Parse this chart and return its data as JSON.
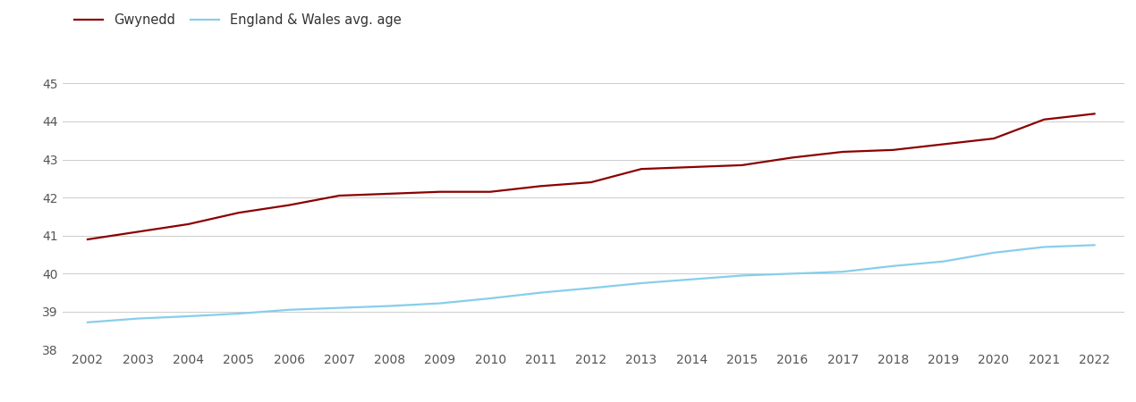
{
  "years": [
    2002,
    2003,
    2004,
    2005,
    2006,
    2007,
    2008,
    2009,
    2010,
    2011,
    2012,
    2013,
    2014,
    2015,
    2016,
    2017,
    2018,
    2019,
    2020,
    2021,
    2022
  ],
  "gwynedd": [
    40.9,
    41.1,
    41.3,
    41.6,
    41.8,
    42.05,
    42.1,
    42.15,
    42.15,
    42.3,
    42.4,
    42.75,
    42.8,
    42.85,
    43.05,
    43.2,
    43.25,
    43.4,
    43.55,
    44.05,
    44.2
  ],
  "england_wales": [
    38.72,
    38.82,
    38.88,
    38.95,
    39.05,
    39.1,
    39.15,
    39.22,
    39.35,
    39.5,
    39.62,
    39.75,
    39.85,
    39.95,
    40.0,
    40.05,
    40.2,
    40.32,
    40.55,
    40.7,
    40.75
  ],
  "gwynedd_color": "#8B0000",
  "england_wales_color": "#87CEEB",
  "gwynedd_label": "Gwynedd",
  "england_wales_label": "England & Wales avg. age",
  "ylim_min": 38,
  "ylim_max": 45.5,
  "yticks": [
    38,
    39,
    40,
    41,
    42,
    43,
    44,
    45
  ],
  "background_color": "#ffffff",
  "grid_color": "#cccccc",
  "line_width": 1.6,
  "legend_fontsize": 10.5,
  "tick_fontsize": 10,
  "tick_color": "#555555"
}
